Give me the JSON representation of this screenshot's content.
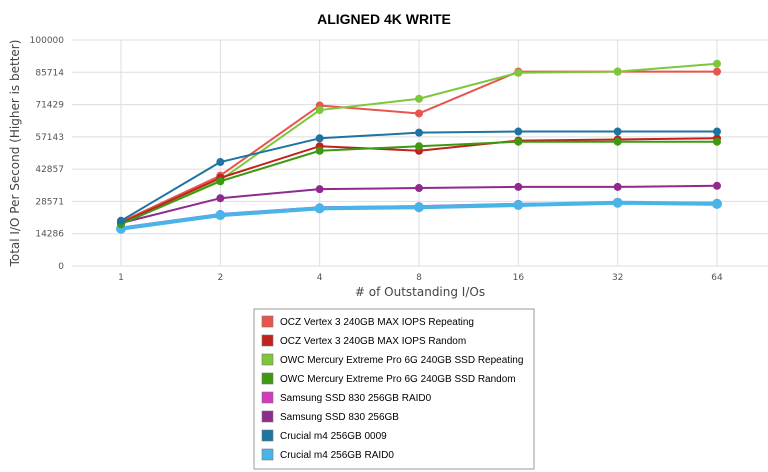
{
  "chart_data": {
    "type": "line",
    "title": "ALIGNED 4K WRITE",
    "xlabel": "# of Outstanding I/Os",
    "ylabel": "Total I/O Per Second (Higher is better)",
    "categories": [
      "1",
      "2",
      "4",
      "8",
      "16",
      "32",
      "64"
    ],
    "ylim": [
      0,
      100000
    ],
    "yticks": [
      "0",
      "14286",
      "28571",
      "42857",
      "57143",
      "71429",
      "85714",
      "100000"
    ],
    "grid": true,
    "legend_position": "bottom",
    "series": [
      {
        "name": "OCZ Vertex 3 240GB MAX IOPS Repeating",
        "color": "#e8554e",
        "values": [
          19500,
          40000,
          71000,
          67500,
          86000,
          86000,
          86000
        ]
      },
      {
        "name": "OCZ Vertex 3 240GB MAX IOPS Random",
        "color": "#c0221e",
        "values": [
          19000,
          39000,
          53000,
          51000,
          55500,
          56000,
          56500
        ]
      },
      {
        "name": "OWC Mercury Extreme Pro 6G 240GB SSD Repeating",
        "color": "#7dc83a",
        "values": [
          19000,
          38000,
          69000,
          74000,
          85500,
          86000,
          89500
        ]
      },
      {
        "name": "OWC Mercury Extreme Pro 6G 240GB SSD Random",
        "color": "#3d9a10",
        "values": [
          18500,
          37500,
          51000,
          53000,
          55000,
          55000,
          55000
        ]
      },
      {
        "name": "Samsung SSD 830 256GB RAID0",
        "color": "#d23bbf",
        "values": [
          17000,
          23000,
          26000,
          26500,
          27500,
          28000,
          28000
        ]
      },
      {
        "name": "Samsung SSD 830 256GB",
        "color": "#8e2b8d",
        "values": [
          19000,
          30000,
          34000,
          34500,
          35000,
          35000,
          35500
        ]
      },
      {
        "name": "Crucial m4 256GB 0009",
        "color": "#1e73a0",
        "values": [
          20000,
          46000,
          56500,
          59000,
          59500,
          59500,
          59500
        ]
      },
      {
        "name": "Crucial m4 256GB RAID0",
        "color": "#48b4e8",
        "values": [
          16500,
          22500,
          25500,
          26000,
          27000,
          28000,
          27500
        ]
      }
    ]
  }
}
